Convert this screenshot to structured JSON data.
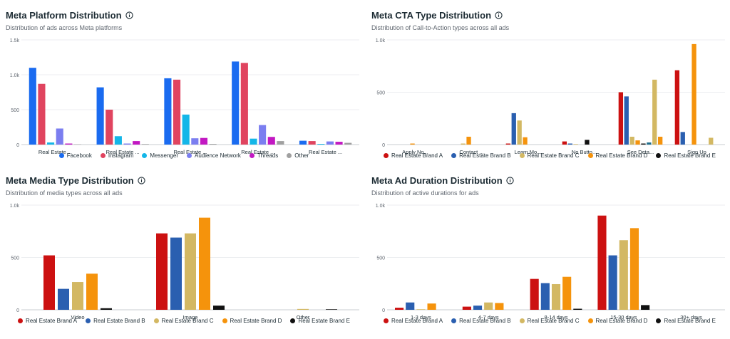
{
  "charts": [
    {
      "title": "Meta Platform Distribution",
      "subtitle": "Distribution of ads across Meta platforms",
      "chart_data": {
        "type": "bar",
        "title": "Meta Platform Distribution",
        "categories": [
          "Real Estate ...",
          "Real Estate ...",
          "Real Estate ...",
          "Real Estate ...",
          "Real Estate ..."
        ],
        "y_ticks": [
          "0",
          "500",
          "1.0k",
          "1.5k"
        ],
        "ylim": [
          0,
          1500
        ],
        "grid": true,
        "legend": "bottom",
        "series": [
          {
            "name": "Facebook",
            "color": "#1a6bf0",
            "values": [
              1100,
              820,
              950,
              1190,
              55
            ]
          },
          {
            "name": "Instagram",
            "color": "#e0445f",
            "values": [
              870,
              500,
              930,
              1170,
              50
            ]
          },
          {
            "name": "Messenger",
            "color": "#14b6e8",
            "values": [
              30,
              120,
              430,
              85,
              10
            ]
          },
          {
            "name": "Audience Network",
            "color": "#7b7ef0",
            "values": [
              230,
              15,
              90,
              280,
              45
            ]
          },
          {
            "name": "Threads",
            "color": "#c218c2",
            "values": [
              15,
              50,
              95,
              110,
              40
            ]
          },
          {
            "name": "Other",
            "color": "#a0a0a0",
            "values": [
              5,
              8,
              10,
              50,
              25
            ]
          }
        ]
      }
    },
    {
      "title": "Meta CTA Type Distribution",
      "subtitle": "Distribution of Call-to-Action types across all ads",
      "chart_data": {
        "type": "bar",
        "title": "Meta CTA Type Distribution",
        "categories": [
          "Apply No...",
          "Contact ...",
          "Learn Mo...",
          "No Butto...",
          "See Deta...",
          "Sign Up"
        ],
        "y_ticks": [
          "0",
          "500",
          "1.0k"
        ],
        "ylim": [
          0,
          1000
        ],
        "grid": true,
        "legend": "bottom",
        "series": [
          {
            "name": "Real Estate Brand A",
            "color": "#cc1111",
            "values": [
              0,
              0,
              10,
              30,
              500,
              710
            ]
          },
          {
            "name": "Real Estate Brand B",
            "color": "#2a5fb0",
            "values": [
              0,
              0,
              300,
              10,
              460,
              120
            ]
          },
          {
            "name": "Real Estate Brand C",
            "color": "#d3b863",
            "values": [
              0,
              10,
              230,
              5,
              75,
              0
            ]
          },
          {
            "name": "Real Estate Brand D",
            "color": "#f5930c",
            "values": [
              10,
              75,
              70,
              0,
              40,
              960
            ]
          },
          {
            "name": "Real Estate Brand E",
            "color": "#111111",
            "values": [
              0,
              0,
              0,
              45,
              10,
              0
            ]
          },
          {
            "name": "",
            "color": "#1f6e8c",
            "values": [
              0,
              0,
              0,
              0,
              20,
              0
            ]
          },
          {
            "name": "",
            "color": "#d3b863",
            "values": [
              0,
              0,
              0,
              0,
              620,
              65
            ]
          },
          {
            "name": "",
            "color": "#f5930c",
            "values": [
              0,
              0,
              0,
              0,
              75,
              0
            ]
          }
        ]
      }
    },
    {
      "title": "Meta Media Type Distribution",
      "subtitle": "Distribution of media types across all ads",
      "chart_data": {
        "type": "bar",
        "title": "Meta Media Type Distribution",
        "categories": [
          "Video",
          "Image",
          "Other"
        ],
        "y_ticks": [
          "0",
          "500",
          "1.0k"
        ],
        "ylim": [
          0,
          1000
        ],
        "grid": true,
        "legend": "bottom",
        "series": [
          {
            "name": "Real Estate Brand A",
            "color": "#cc1111",
            "values": [
              520,
              730,
              0
            ]
          },
          {
            "name": "Real Estate Brand B",
            "color": "#2a5fb0",
            "values": [
              200,
              690,
              0
            ]
          },
          {
            "name": "Real Estate Brand C",
            "color": "#d3b863",
            "values": [
              265,
              730,
              8
            ]
          },
          {
            "name": "Real Estate Brand D",
            "color": "#f5930c",
            "values": [
              345,
              880,
              0
            ]
          },
          {
            "name": "Real Estate Brand E",
            "color": "#111111",
            "values": [
              15,
              40,
              5
            ]
          }
        ]
      }
    },
    {
      "title": "Meta Ad Duration Distribution",
      "subtitle": "Distribution of active durations for ads",
      "chart_data": {
        "type": "bar",
        "title": "Meta Ad Duration Distribution",
        "categories": [
          "1-3 days",
          "4-7 days",
          "8-14 days",
          "15-30 days",
          "30+ days"
        ],
        "y_ticks": [
          "0",
          "500",
          "1.0k"
        ],
        "ylim": [
          0,
          1000
        ],
        "grid": true,
        "legend": "bottom",
        "series": [
          {
            "name": "Real Estate Brand A",
            "color": "#cc1111",
            "values": [
              20,
              30,
              295,
              900,
              0
            ]
          },
          {
            "name": "Real Estate Brand B",
            "color": "#2a5fb0",
            "values": [
              70,
              40,
              255,
              520,
              0
            ]
          },
          {
            "name": "Real Estate Brand C",
            "color": "#d3b863",
            "values": [
              5,
              70,
              245,
              665,
              0
            ]
          },
          {
            "name": "Real Estate Brand D",
            "color": "#f5930c",
            "values": [
              60,
              65,
              315,
              780,
              0
            ]
          },
          {
            "name": "Real Estate Brand E",
            "color": "#111111",
            "values": [
              0,
              0,
              10,
              45,
              0
            ]
          }
        ]
      }
    }
  ]
}
